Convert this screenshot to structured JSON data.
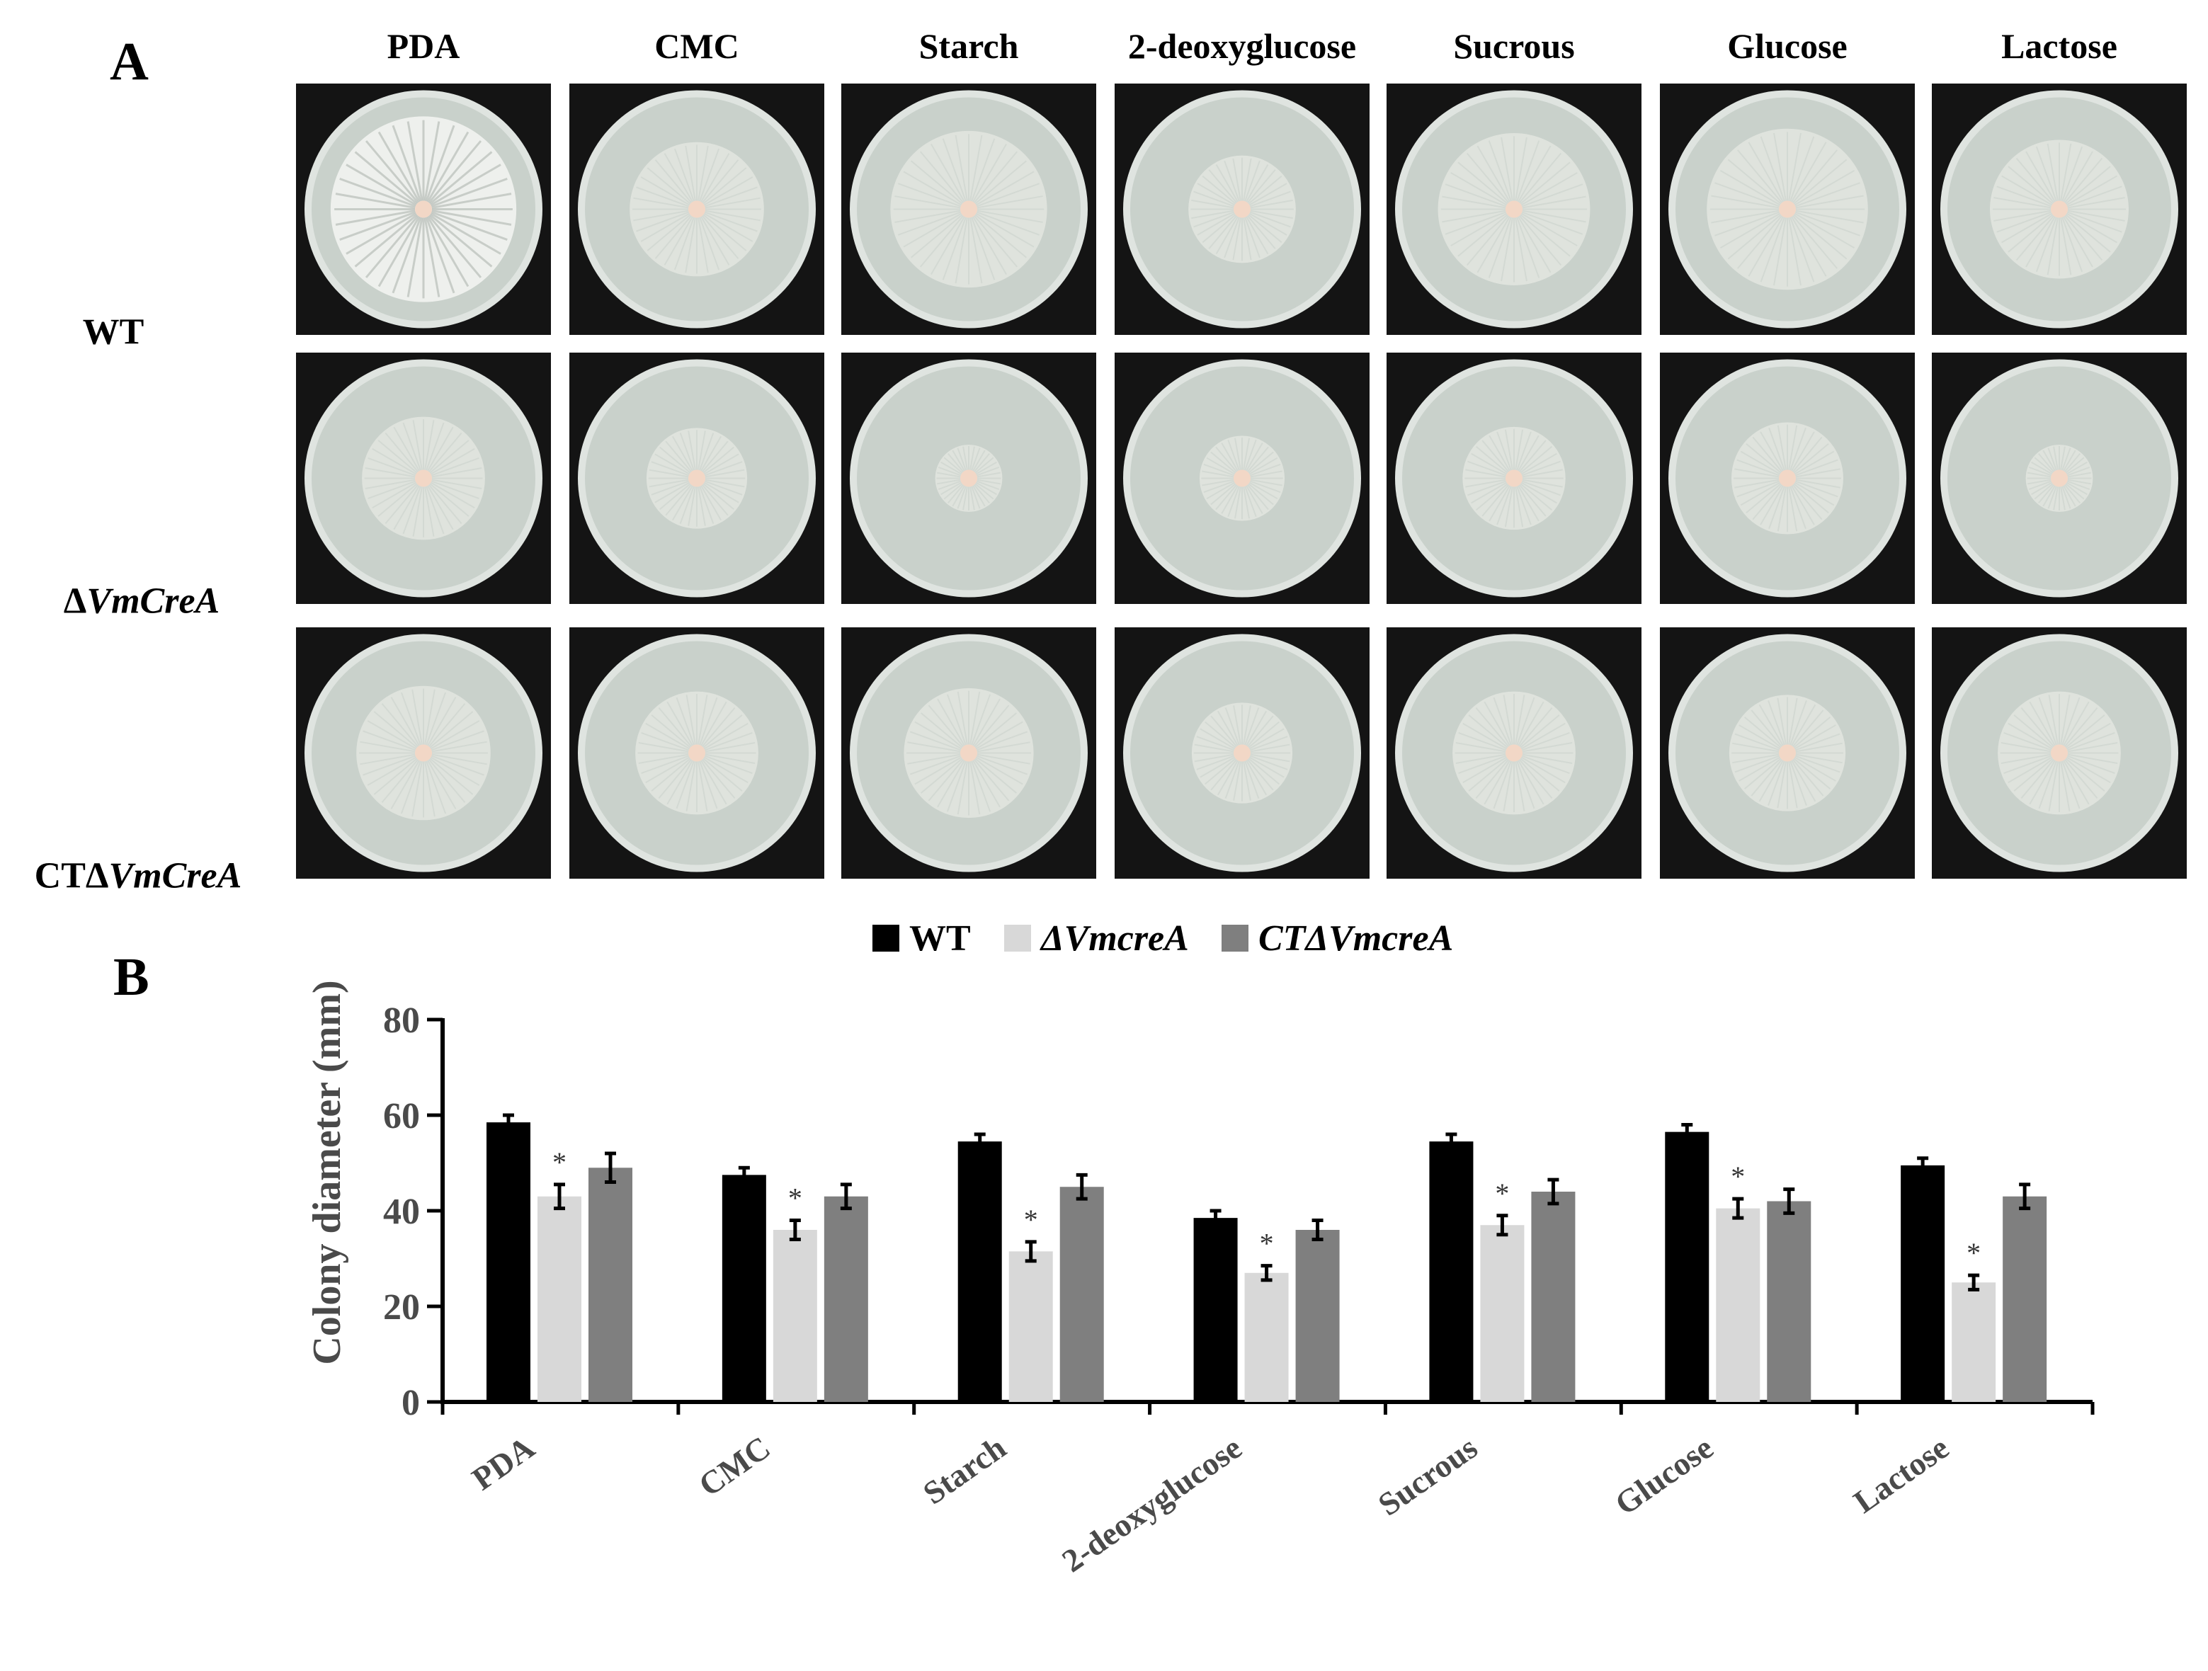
{
  "panel_a": {
    "label": "A",
    "columns": [
      "PDA",
      "CMC",
      "Starch",
      "2-deoxyglucose",
      "Sucrous",
      "Glucose",
      "Lactose"
    ],
    "rows": [
      {
        "prefix": "",
        "italic": "",
        "plain": "WT"
      },
      {
        "prefix": "Δ",
        "italic": "VmCreA",
        "plain": ""
      },
      {
        "prefix": "CTΔ",
        "italic": "VmCreA",
        "plain": ""
      }
    ],
    "colony_fraction": [
      [
        0.83,
        0.6,
        0.7,
        0.48,
        0.68,
        0.72,
        0.62
      ],
      [
        0.55,
        0.45,
        0.3,
        0.38,
        0.46,
        0.5,
        0.3
      ],
      [
        0.6,
        0.55,
        0.58,
        0.45,
        0.55,
        0.52,
        0.55
      ]
    ],
    "colors": {
      "plate_bg": "#141414",
      "agar": "#c9d1cb",
      "agar_rim": "#dfe4e0",
      "colony": "#e6e8e3",
      "plug": "#f2d7c6",
      "wt_pda_colony": "#f0f1ee"
    }
  },
  "chart_data": {
    "type": "bar",
    "panel_label": "B",
    "categories": [
      "PDA",
      "CMC",
      "Starch",
      "2-deoxyglucose",
      "Sucrous",
      "Glucose",
      "Lactose"
    ],
    "series": [
      {
        "name": "WT",
        "color": "#000000",
        "values": [
          58.5,
          47.5,
          54.5,
          38.5,
          54.5,
          56.5,
          49.5
        ],
        "errors": [
          1.5,
          1.5,
          1.5,
          1.5,
          1.5,
          1.5,
          1.5
        ]
      },
      {
        "name": "ΔVmcreA",
        "color": "#d8d8d8",
        "values": [
          43.0,
          36.0,
          31.5,
          27.0,
          37.0,
          40.5,
          25.0
        ],
        "errors": [
          2.5,
          2.0,
          2.0,
          1.5,
          2.0,
          2.0,
          1.5
        ]
      },
      {
        "name": "CTΔVmcreA",
        "color": "#7f7f7f",
        "values": [
          49.0,
          43.0,
          45.0,
          36.0,
          44.0,
          42.0,
          43.0
        ],
        "errors": [
          3.0,
          2.5,
          2.5,
          2.0,
          2.5,
          2.5,
          2.5
        ]
      }
    ],
    "significance": [
      [
        "*"
      ],
      [
        "*"
      ],
      [
        "*"
      ],
      [
        "*"
      ],
      [
        "*"
      ],
      [
        "*"
      ],
      [
        "*"
      ]
    ],
    "significance_marker": "*",
    "ylabel": "Colony diameter (mm)",
    "ylim": [
      0,
      80
    ],
    "yticks": [
      0,
      20,
      40,
      60,
      80
    ],
    "legend_placement": "top-center",
    "grid": false
  }
}
